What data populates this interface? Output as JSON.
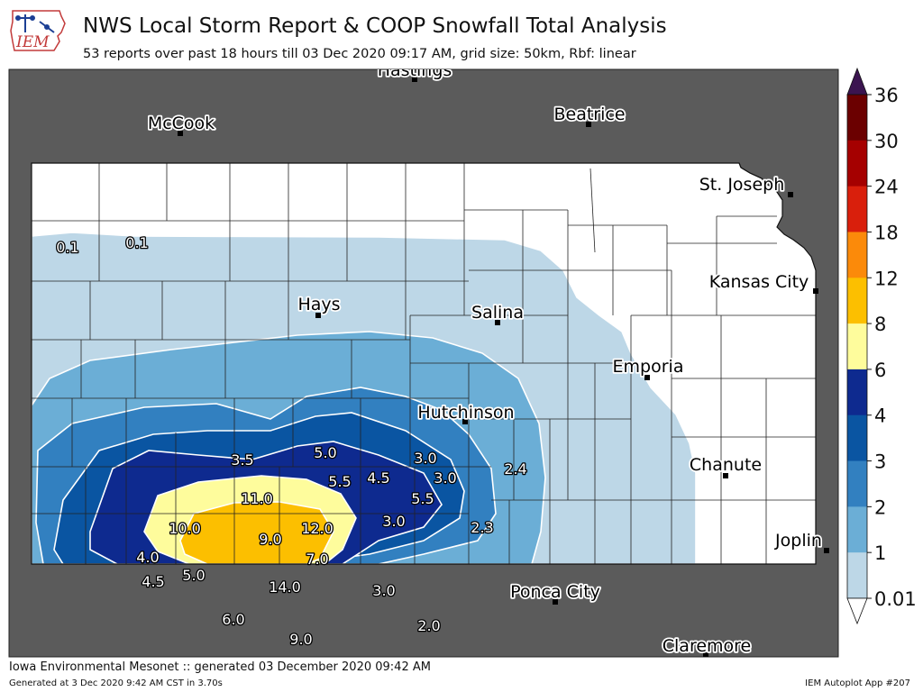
{
  "header": {
    "logo_text": "IEM",
    "title": "NWS Local Storm Report & COOP Snowfall Total Analysis",
    "subtitle": "53 reports over past 18 hours till 03 Dec 2020 09:17 AM, grid size: 50km, Rbf: linear"
  },
  "colors": {
    "outside": "#5b5b5b",
    "county_line": "#222222",
    "contour_line": "#ffffff"
  },
  "cities": [
    {
      "name": "Hastings"
    },
    {
      "name": "McCook"
    },
    {
      "name": "Beatrice"
    },
    {
      "name": "St. Joseph"
    },
    {
      "name": "Kansas City"
    },
    {
      "name": "Hays"
    },
    {
      "name": "Salina"
    },
    {
      "name": "Emporia"
    },
    {
      "name": "Hutchinson"
    },
    {
      "name": "Chanute"
    },
    {
      "name": "Joplin"
    },
    {
      "name": "Ponca City"
    },
    {
      "name": "Claremore"
    }
  ],
  "reports": [
    "0.1",
    "0.1",
    "3.5",
    "5.0",
    "3.0",
    "5.5",
    "4.5",
    "3.0",
    "2.4",
    "11.0",
    "5.5",
    "10.0",
    "9.0",
    "12.0",
    "3.0",
    "2.3",
    "4.0",
    "7.0",
    "4.5",
    "5.0",
    "14.0",
    "3.0",
    "6.0",
    "2.0",
    "9.0"
  ],
  "colorbar": {
    "ticks": [
      "36",
      "30",
      "24",
      "18",
      "12",
      "8",
      "6",
      "4",
      "3",
      "2",
      "1",
      "0.01"
    ],
    "colors": [
      "#6b0000",
      "#a50000",
      "#d91f0c",
      "#fb8a0a",
      "#fcbf00",
      "#fefc9c",
      "#0e2a8f",
      "#0a55a2",
      "#3280c0",
      "#6baed6",
      "#bdd7e7"
    ],
    "extend_color": "#3b1450"
  },
  "footer": {
    "left": "Iowa Environmental Mesonet :: generated 03 December 2020 09:42 AM",
    "generated": "Generated at 3 Dec 2020 9:42 AM CST in 3.70s",
    "right": "IEM Autoplot App #207"
  }
}
